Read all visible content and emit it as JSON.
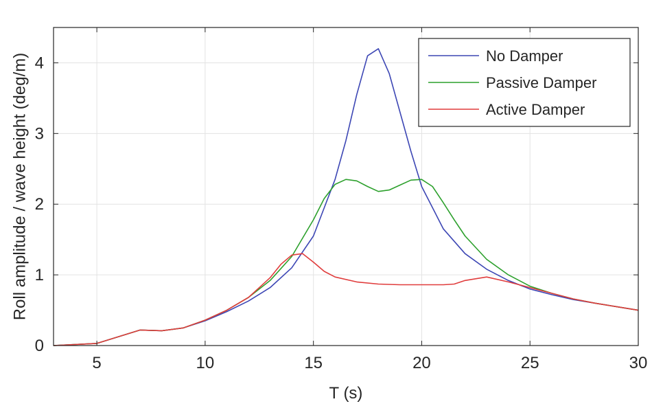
{
  "chart_data": {
    "type": "line",
    "xlabel": "T (s)",
    "ylabel": "Roll amplitude / wave height (deg/m)",
    "xlim": [
      3,
      30
    ],
    "ylim": [
      0,
      4.5
    ],
    "xticks": [
      5,
      10,
      15,
      20,
      25,
      30
    ],
    "yticks": [
      0,
      1,
      2,
      3,
      4
    ],
    "grid": true,
    "legend_position": "top-right",
    "series": [
      {
        "name": "No Damper",
        "color": "#3c46b4",
        "x": [
          3,
          5,
          7,
          8,
          9,
          10,
          11,
          12,
          13,
          14,
          15,
          16,
          16.5,
          17,
          17.5,
          18,
          18.5,
          19,
          19.5,
          20,
          21,
          22,
          23,
          24,
          25,
          26,
          27,
          28,
          29,
          30
        ],
        "y": [
          0.0,
          0.03,
          0.22,
          0.21,
          0.25,
          0.35,
          0.48,
          0.63,
          0.82,
          1.1,
          1.55,
          2.35,
          2.9,
          3.55,
          4.1,
          4.2,
          3.85,
          3.3,
          2.75,
          2.25,
          1.65,
          1.3,
          1.08,
          0.92,
          0.8,
          0.72,
          0.65,
          0.6,
          0.55,
          0.5
        ]
      },
      {
        "name": "Passive Damper",
        "color": "#2ca02c",
        "x": [
          3,
          5,
          7,
          8,
          9,
          10,
          11,
          12,
          13,
          14,
          15,
          15.5,
          16,
          16.5,
          17,
          17.5,
          18,
          18.5,
          19,
          19.5,
          20,
          20.5,
          21,
          21.5,
          22,
          23,
          24,
          25,
          26,
          27,
          28,
          29,
          30
        ],
        "y": [
          0.0,
          0.03,
          0.22,
          0.21,
          0.25,
          0.36,
          0.5,
          0.68,
          0.92,
          1.26,
          1.78,
          2.08,
          2.28,
          2.35,
          2.33,
          2.25,
          2.18,
          2.2,
          2.27,
          2.34,
          2.35,
          2.25,
          2.02,
          1.78,
          1.55,
          1.22,
          1.0,
          0.84,
          0.74,
          0.66,
          0.6,
          0.55,
          0.5
        ]
      },
      {
        "name": "Active Damper",
        "color": "#e03c3c",
        "x": [
          3,
          5,
          7,
          8,
          9,
          10,
          11,
          12,
          13,
          13.5,
          14,
          14.5,
          15,
          15.5,
          16,
          17,
          18,
          19,
          20,
          21,
          21.5,
          22,
          23,
          24,
          25,
          26,
          27,
          28,
          29,
          30
        ],
        "y": [
          0.0,
          0.03,
          0.22,
          0.21,
          0.25,
          0.36,
          0.5,
          0.68,
          0.96,
          1.15,
          1.28,
          1.3,
          1.18,
          1.05,
          0.97,
          0.9,
          0.87,
          0.86,
          0.86,
          0.86,
          0.87,
          0.92,
          0.97,
          0.9,
          0.82,
          0.74,
          0.66,
          0.6,
          0.55,
          0.5
        ]
      }
    ]
  }
}
